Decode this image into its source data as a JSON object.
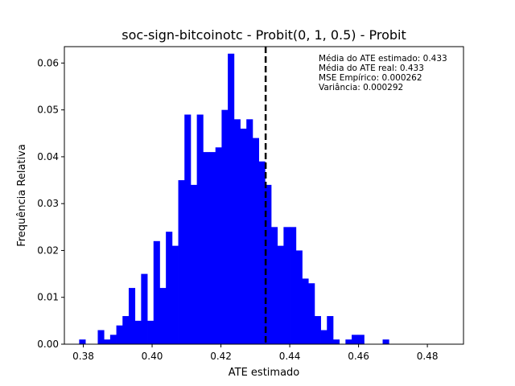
{
  "chart_data": {
    "type": "bar",
    "title": "soc-sign-bitcoinotc - Probit(0, 1, 0.5) - Probit",
    "xlabel": "ATE estimado",
    "ylabel": "Frequência Relativa",
    "xlim": [
      0.3745,
      0.4905
    ],
    "ylim": [
      0,
      0.0635
    ],
    "xticks": [
      "0.38",
      "0.40",
      "0.42",
      "0.44",
      "0.46",
      "0.48"
    ],
    "yticks": [
      "0.00",
      "0.01",
      "0.02",
      "0.03",
      "0.04",
      "0.05",
      "0.06"
    ],
    "bar_color": "#0000ff",
    "bin_start": 0.3788,
    "bin_width": 0.0018,
    "values": [
      0.001,
      0,
      0,
      0.003,
      0.001,
      0.002,
      0.004,
      0.006,
      0.012,
      0.005,
      0.015,
      0.005,
      0.022,
      0.012,
      0.024,
      0.021,
      0.035,
      0.049,
      0.034,
      0.049,
      0.041,
      0.041,
      0.042,
      0.05,
      0.062,
      0.048,
      0.046,
      0.048,
      0.044,
      0.039,
      0.034,
      0.025,
      0.021,
      0.025,
      0.025,
      0.02,
      0.014,
      0.013,
      0.006,
      0.003,
      0.006,
      0.001,
      0,
      0.001,
      0.002,
      0.002,
      0,
      0,
      0,
      0.001
    ],
    "mean_line": {
      "x": 0.433,
      "style": "dashed",
      "color": "#000000"
    },
    "annotations": [
      "Média do ATE estimado: 0.433",
      "Média do ATE real: 0.433",
      "MSE Empírico: 0.000262",
      "Variância: 0.000292"
    ]
  }
}
